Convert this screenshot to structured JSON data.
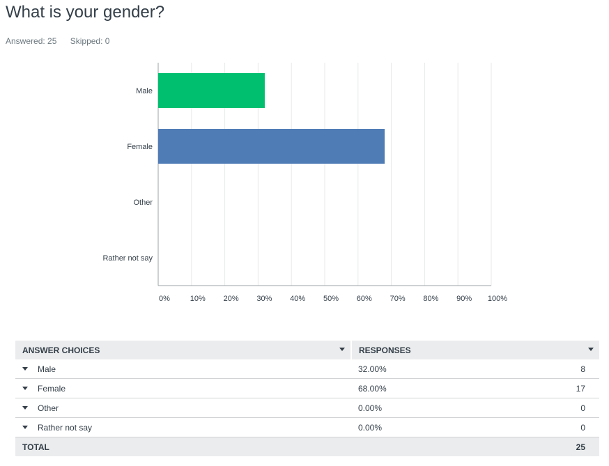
{
  "question": {
    "title": "What is your gender?",
    "answered_label": "Answered: 25",
    "skipped_label": "Skipped: 0"
  },
  "chart_data": {
    "type": "bar",
    "orientation": "horizontal",
    "categories": [
      "Male",
      "Female",
      "Other",
      "Rather not say"
    ],
    "values": [
      32,
      68,
      0,
      0
    ],
    "colors": [
      "#00bf6f",
      "#507cb6",
      "#f9be00",
      "#6bc8cd"
    ],
    "xlim": [
      0,
      100
    ],
    "xticks": [
      "0%",
      "10%",
      "20%",
      "30%",
      "40%",
      "50%",
      "60%",
      "70%",
      "80%",
      "90%",
      "100%"
    ],
    "grid": true,
    "title": "",
    "xlabel": "",
    "ylabel": ""
  },
  "table": {
    "header_choice": "ANSWER CHOICES",
    "header_responses": "RESPONSES",
    "rows": [
      {
        "choice": "Male",
        "percent": "32.00%",
        "count": "8"
      },
      {
        "choice": "Female",
        "percent": "68.00%",
        "count": "17"
      },
      {
        "choice": "Other",
        "percent": "0.00%",
        "count": "0"
      },
      {
        "choice": "Rather not say",
        "percent": "0.00%",
        "count": "0"
      }
    ],
    "total_label": "TOTAL",
    "total_count": "25"
  }
}
